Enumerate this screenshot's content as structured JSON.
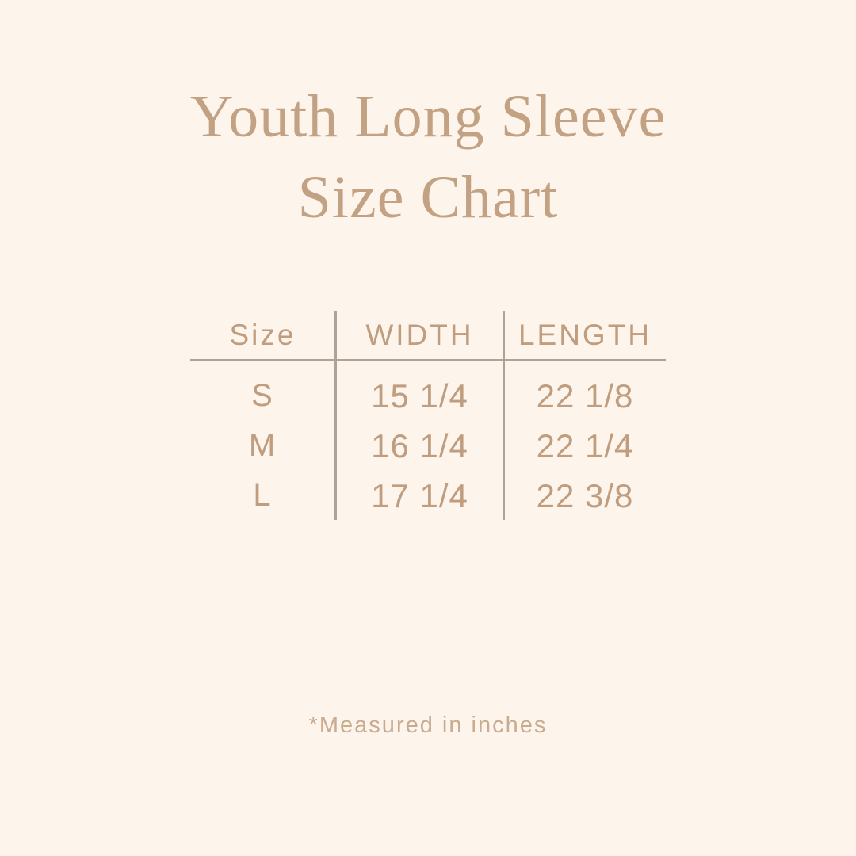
{
  "page": {
    "background_color": "#fdf4ec",
    "title_color": "#c3a284",
    "table_text_color": "#bf9d7e",
    "line_color": "#b0a294",
    "footnote_color": "#c9ab90"
  },
  "title": {
    "line1": "Youth Long Sleeve",
    "line2": "Size Chart"
  },
  "table": {
    "headers": [
      "Size",
      "WIDTH",
      "LENGTH"
    ],
    "rows": [
      {
        "size": "S",
        "width": "15 1/4",
        "length": "22 1/8"
      },
      {
        "size": "M",
        "width": "16 1/4",
        "length": "22 1/4"
      },
      {
        "size": "L",
        "width": "17 1/4",
        "length": "22 3/8"
      }
    ]
  },
  "footnote": "*Measured in inches",
  "chart_data": {
    "type": "table",
    "title": "Youth Long Sleeve Size Chart",
    "columns": [
      "Size",
      "WIDTH",
      "LENGTH"
    ],
    "units": "inches",
    "rows": [
      [
        "S",
        15.25,
        22.125
      ],
      [
        "M",
        16.25,
        22.25
      ],
      [
        "L",
        17.25,
        22.375
      ]
    ],
    "note": "*Measured in inches"
  }
}
